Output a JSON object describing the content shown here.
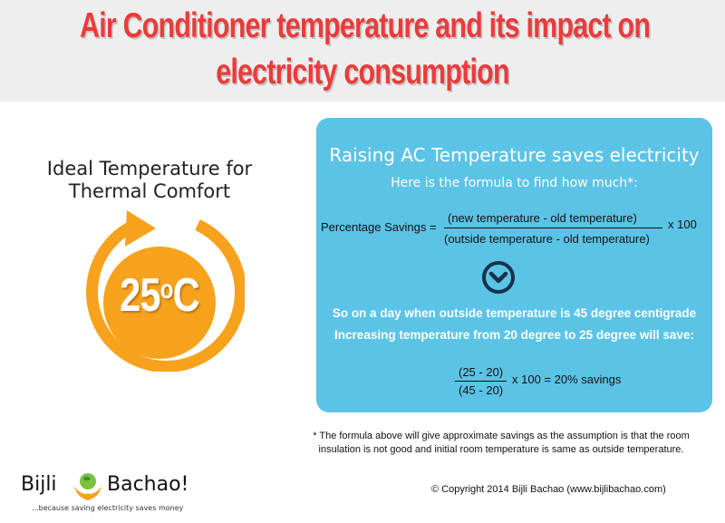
{
  "header": {
    "title_line1": "Air Conditioner temperature and its impact on",
    "title_line2": "electricity consumption",
    "title_color": "#ea3b3b",
    "background": "#eeeeee"
  },
  "thermal": {
    "label_line1": "Ideal Temperature for",
    "label_line2": "Thermal Comfort",
    "temp_value": "25",
    "temp_degree": "o",
    "temp_unit": "C",
    "ring_color": "#f6a21c",
    "icon": "circular-arrow-icon"
  },
  "panel": {
    "background": "#5bc3e6",
    "title": "Raising AC Temperature saves electricity",
    "subtitle": "Here is the formula to find how much*:",
    "formula_label": "Percentage Savings =",
    "formula_numerator": "(new temperature - old temperature)",
    "formula_denominator": "(outside temperature - old temperature)",
    "formula_multiplier": "x 100",
    "divider_icon": "chevron-down-circle-icon",
    "example_line1": "So on a day when outside temperature is 45 degree centigrade",
    "example_line2": "Increasing temperature from 20 degree  to 25 degree will save:",
    "example_numerator": "(25 - 20)",
    "example_denominator": "(45 - 20)",
    "example_result": "x 100 = 20% savings"
  },
  "footnote": {
    "line1": "* The formula above will give approximate savings as the assumption is that the room",
    "line2": "insulation is not good and initial room temperature is same as outside temperature."
  },
  "logo": {
    "word1": "Bijli",
    "word2": "Bachao!",
    "tagline": "...because saving electricity saves money",
    "icon": "globe-hands-icon"
  },
  "copyright": "© Copyright 2014 Bijli Bachao (www.bijlibachao.com)"
}
